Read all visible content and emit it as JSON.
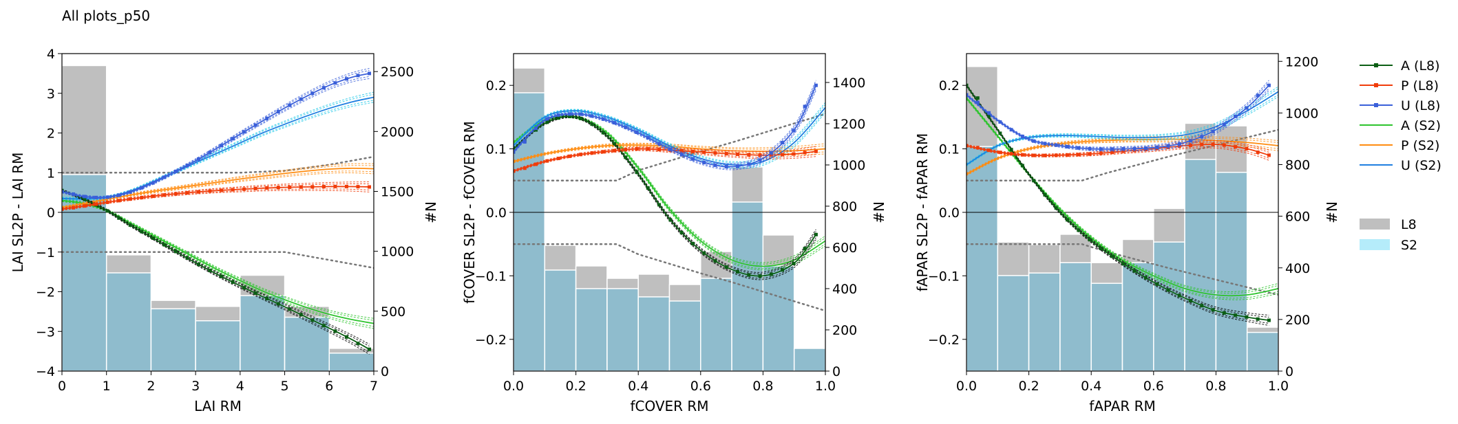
{
  "figure": {
    "suptitle": "All plots_p50"
  },
  "legend": {
    "placement": "right",
    "lines": [
      {
        "label": "A (L8)",
        "color": "#0b5e14",
        "marker": true
      },
      {
        "label": "P (L8)",
        "color": "#f03c0a",
        "marker": true
      },
      {
        "label": "U (L8)",
        "color": "#3a5fd9",
        "marker": true
      },
      {
        "label": "A (S2)",
        "color": "#2ec42e",
        "marker": false
      },
      {
        "label": "P (S2)",
        "color": "#ff8c10",
        "marker": false
      },
      {
        "label": "U (S2)",
        "color": "#1f7fe0",
        "marker": false
      }
    ],
    "patches": [
      {
        "label": "L8",
        "color": "#bfbfbf"
      },
      {
        "label": "S2",
        "color": "#b5ecfa"
      }
    ]
  },
  "colors": {
    "hist_l8": "#bfbfbf",
    "hist_s2": "#b5ecfa",
    "hist_overlap": "#8fbccd",
    "threshold": "#777777"
  },
  "chart_data": [
    {
      "type": "line",
      "xlabel": "LAI RM",
      "ylabel": "LAI SL2P - LAI RM",
      "y2label": "#N",
      "xlim": [
        0,
        7
      ],
      "ylim": [
        -4,
        4
      ],
      "y2lim": [
        0,
        2650
      ],
      "xticks": [
        "0",
        "1",
        "2",
        "3",
        "4",
        "5",
        "6",
        "7"
      ],
      "yticks": [
        "−4",
        "−3",
        "−2",
        "−1",
        "0",
        "1",
        "2",
        "3",
        "4"
      ],
      "y2ticks": [
        "0",
        "500",
        "1000",
        "1500",
        "2000",
        "2500"
      ],
      "hist_bins": [
        0,
        1,
        2,
        3,
        4,
        5,
        6,
        7
      ],
      "hist_l8": [
        2550,
        970,
        590,
        540,
        800,
        540,
        190
      ],
      "hist_s2": [
        1640,
        820,
        520,
        420,
        630,
        450,
        150
      ],
      "thresholds": {
        "x": [
          0,
          0.5,
          1,
          2,
          3,
          4,
          5,
          6,
          7
        ],
        "upper": [
          1.0,
          1.0,
          1.0,
          1.0,
          1.0,
          1.0,
          1.05,
          1.2,
          1.4
        ],
        "lower": [
          -1.0,
          -1.0,
          -1.0,
          -1.0,
          -1.0,
          -1.0,
          -1.0,
          -1.2,
          -1.4
        ]
      },
      "series": [
        {
          "name": "A (L8)",
          "x": [
            0,
            0.5,
            1,
            1.5,
            2,
            2.5,
            3,
            3.5,
            4,
            4.5,
            5,
            5.5,
            6,
            6.5,
            6.9
          ],
          "y": [
            0.55,
            0.33,
            0.05,
            -0.3,
            -0.62,
            -0.95,
            -1.27,
            -1.57,
            -1.85,
            -2.12,
            -2.38,
            -2.65,
            -2.92,
            -3.2,
            -3.45
          ]
        },
        {
          "name": "P (L8)",
          "x": [
            0,
            0.5,
            1,
            1.5,
            2,
            2.5,
            3,
            3.5,
            4,
            4.5,
            5,
            5.5,
            6,
            6.5,
            6.9
          ],
          "y": [
            0.08,
            0.16,
            0.25,
            0.33,
            0.4,
            0.46,
            0.51,
            0.55,
            0.58,
            0.61,
            0.63,
            0.64,
            0.65,
            0.65,
            0.64
          ]
        },
        {
          "name": "U (L8)",
          "x": [
            0,
            0.5,
            1,
            1.5,
            2,
            2.5,
            3,
            3.5,
            4,
            4.5,
            5,
            5.5,
            6,
            6.5,
            6.9
          ],
          "y": [
            0.52,
            0.4,
            0.38,
            0.5,
            0.72,
            1.0,
            1.3,
            1.63,
            1.97,
            2.3,
            2.63,
            2.93,
            3.2,
            3.4,
            3.5
          ]
        },
        {
          "name": "A (S2)",
          "x": [
            0,
            0.5,
            1,
            1.5,
            2,
            2.5,
            3,
            3.5,
            4,
            4.5,
            5,
            5.5,
            6,
            6.5,
            7
          ],
          "y": [
            0.3,
            0.22,
            0.05,
            -0.25,
            -0.55,
            -0.85,
            -1.15,
            -1.45,
            -1.72,
            -1.98,
            -2.2,
            -2.4,
            -2.57,
            -2.7,
            -2.8
          ]
        },
        {
          "name": "P (S2)",
          "x": [
            0,
            0.5,
            1,
            1.5,
            2,
            2.5,
            3,
            3.5,
            4,
            4.5,
            5,
            5.5,
            6,
            6.5,
            7
          ],
          "y": [
            0.12,
            0.22,
            0.33,
            0.43,
            0.52,
            0.6,
            0.68,
            0.76,
            0.84,
            0.91,
            0.98,
            1.04,
            1.09,
            1.11,
            1.1
          ]
        },
        {
          "name": "U (S2)",
          "x": [
            0,
            0.5,
            1,
            1.5,
            2,
            2.5,
            3,
            3.5,
            4,
            4.5,
            5,
            5.5,
            6,
            6.5,
            7
          ],
          "y": [
            0.35,
            0.34,
            0.38,
            0.52,
            0.75,
            1.0,
            1.25,
            1.5,
            1.75,
            2.0,
            2.22,
            2.43,
            2.62,
            2.78,
            2.9
          ]
        }
      ]
    },
    {
      "type": "line",
      "xlabel": "fCOVER RM",
      "ylabel": "fCOVER SL2P - fCOVER RM",
      "y2label": "#N",
      "xlim": [
        0,
        1
      ],
      "ylim": [
        -0.25,
        0.25
      ],
      "y2lim": [
        0,
        1540
      ],
      "xticks": [
        "0.0",
        "0.2",
        "0.4",
        "0.6",
        "0.8",
        "1.0"
      ],
      "yticks": [
        "−0.2",
        "−0.1",
        "0.0",
        "0.1",
        "0.2"
      ],
      "y2ticks": [
        "0",
        "200",
        "400",
        "600",
        "800",
        "1000",
        "1200",
        "1400"
      ],
      "hist_bins": [
        0,
        0.1,
        0.2,
        0.3,
        0.4,
        0.5,
        0.6,
        0.7,
        0.8,
        0.9,
        1.0
      ],
      "hist_l8": [
        1470,
        610,
        510,
        450,
        470,
        420,
        580,
        990,
        660,
        110
      ],
      "hist_s2": [
        1350,
        490,
        400,
        400,
        360,
        340,
        450,
        820,
        510,
        110
      ],
      "thresholds": {
        "x": [
          0,
          0.1,
          0.2,
          0.33,
          0.4,
          0.5,
          0.6,
          0.7,
          0.8,
          0.9,
          1.0
        ],
        "upper": [
          0.05,
          0.05,
          0.05,
          0.05,
          0.066,
          0.081,
          0.096,
          0.11,
          0.125,
          0.14,
          0.155
        ],
        "lower": [
          -0.05,
          -0.05,
          -0.05,
          -0.05,
          -0.066,
          -0.081,
          -0.096,
          -0.11,
          -0.125,
          -0.14,
          -0.155
        ]
      },
      "series": [
        {
          "name": "A (L8)",
          "x": [
            0,
            0.1,
            0.2,
            0.3,
            0.4,
            0.5,
            0.6,
            0.7,
            0.8,
            0.9,
            0.97
          ],
          "y": [
            0.1,
            0.14,
            0.15,
            0.12,
            0.06,
            -0.01,
            -0.06,
            -0.09,
            -0.1,
            -0.08,
            -0.035
          ]
        },
        {
          "name": "P (L8)",
          "x": [
            0,
            0.1,
            0.2,
            0.3,
            0.4,
            0.5,
            0.6,
            0.7,
            0.8,
            0.9,
            0.97
          ],
          "y": [
            0.065,
            0.08,
            0.09,
            0.096,
            0.1,
            0.098,
            0.095,
            0.092,
            0.09,
            0.092,
            0.096
          ]
        },
        {
          "name": "U (L8)",
          "x": [
            0,
            0.1,
            0.2,
            0.3,
            0.4,
            0.5,
            0.6,
            0.7,
            0.8,
            0.9,
            0.97
          ],
          "y": [
            0.095,
            0.145,
            0.155,
            0.145,
            0.125,
            0.1,
            0.08,
            0.072,
            0.085,
            0.13,
            0.2
          ]
        },
        {
          "name": "A (S2)",
          "x": [
            0,
            0.1,
            0.2,
            0.3,
            0.4,
            0.5,
            0.6,
            0.7,
            0.8,
            0.9,
            1.0
          ],
          "y": [
            0.11,
            0.145,
            0.15,
            0.125,
            0.07,
            0.005,
            -0.045,
            -0.075,
            -0.085,
            -0.075,
            -0.045
          ]
        },
        {
          "name": "P (S2)",
          "x": [
            0,
            0.1,
            0.2,
            0.3,
            0.4,
            0.5,
            0.6,
            0.7,
            0.8,
            0.9,
            1.0
          ],
          "y": [
            0.08,
            0.092,
            0.1,
            0.105,
            0.106,
            0.104,
            0.1,
            0.097,
            0.096,
            0.097,
            0.1
          ]
        },
        {
          "name": "U (S2)",
          "x": [
            0,
            0.1,
            0.2,
            0.3,
            0.4,
            0.5,
            0.6,
            0.7,
            0.8,
            0.9,
            1.0
          ],
          "y": [
            0.105,
            0.15,
            0.16,
            0.15,
            0.13,
            0.105,
            0.085,
            0.075,
            0.08,
            0.11,
            0.165
          ]
        }
      ]
    },
    {
      "type": "line",
      "xlabel": "fAPAR RM",
      "ylabel": "fAPAR SL2P - fAPAR RM",
      "y2label": "#N",
      "xlim": [
        0,
        1
      ],
      "ylim": [
        -0.25,
        0.25
      ],
      "y2lim": [
        0,
        1230
      ],
      "xticks": [
        "0.0",
        "0.2",
        "0.4",
        "0.6",
        "0.8",
        "1.0"
      ],
      "yticks": [
        "−0.2",
        "−0.1",
        "0.0",
        "0.1",
        "0.2"
      ],
      "y2ticks": [
        "0",
        "200",
        "400",
        "600",
        "800",
        "1000",
        "1200"
      ],
      "hist_bins": [
        0,
        0.1,
        0.2,
        0.3,
        0.4,
        0.5,
        0.6,
        0.7,
        0.8,
        0.9,
        1.0
      ],
      "hist_l8": [
        1180,
        500,
        490,
        530,
        420,
        510,
        630,
        960,
        950,
        170
      ],
      "hist_s2": [
        870,
        370,
        380,
        420,
        340,
        420,
        500,
        820,
        770,
        150
      ],
      "thresholds": {
        "x": [
          0,
          0.1,
          0.2,
          0.3,
          0.37,
          0.45,
          0.55,
          0.65,
          0.75,
          0.85,
          1.0
        ],
        "upper": [
          0.05,
          0.05,
          0.05,
          0.05,
          0.05,
          0.062,
          0.075,
          0.088,
          0.1,
          0.112,
          0.13
        ],
        "lower": [
          -0.05,
          -0.05,
          -0.05,
          -0.05,
          -0.05,
          -0.062,
          -0.075,
          -0.088,
          -0.1,
          -0.112,
          -0.13
        ]
      },
      "series": [
        {
          "name": "A (L8)",
          "x": [
            0,
            0.1,
            0.2,
            0.3,
            0.4,
            0.5,
            0.6,
            0.7,
            0.8,
            0.9,
            0.97
          ],
          "y": [
            0.2,
            0.13,
            0.06,
            0.0,
            -0.045,
            -0.08,
            -0.11,
            -0.135,
            -0.155,
            -0.165,
            -0.17
          ]
        },
        {
          "name": "P (L8)",
          "x": [
            0,
            0.1,
            0.2,
            0.3,
            0.4,
            0.5,
            0.6,
            0.7,
            0.8,
            0.9,
            0.97
          ],
          "y": [
            0.105,
            0.095,
            0.09,
            0.09,
            0.092,
            0.096,
            0.1,
            0.105,
            0.107,
            0.1,
            0.09
          ]
        },
        {
          "name": "U (L8)",
          "x": [
            0,
            0.1,
            0.2,
            0.3,
            0.4,
            0.5,
            0.6,
            0.7,
            0.8,
            0.9,
            0.97
          ],
          "y": [
            0.185,
            0.145,
            0.115,
            0.105,
            0.1,
            0.1,
            0.102,
            0.11,
            0.13,
            0.165,
            0.2
          ]
        },
        {
          "name": "A (S2)",
          "x": [
            0,
            0.1,
            0.2,
            0.3,
            0.4,
            0.5,
            0.6,
            0.7,
            0.8,
            0.9,
            1.0
          ],
          "y": [
            0.18,
            0.12,
            0.06,
            0.005,
            -0.04,
            -0.075,
            -0.1,
            -0.12,
            -0.13,
            -0.13,
            -0.12
          ]
        },
        {
          "name": "P (S2)",
          "x": [
            0,
            0.1,
            0.2,
            0.3,
            0.4,
            0.5,
            0.6,
            0.7,
            0.8,
            0.9,
            1.0
          ],
          "y": [
            0.06,
            0.085,
            0.1,
            0.108,
            0.112,
            0.114,
            0.115,
            0.115,
            0.113,
            0.11,
            0.105
          ]
        },
        {
          "name": "U (S2)",
          "x": [
            0,
            0.1,
            0.2,
            0.3,
            0.4,
            0.5,
            0.6,
            0.7,
            0.8,
            0.9,
            1.0
          ],
          "y": [
            0.075,
            0.105,
            0.118,
            0.121,
            0.12,
            0.118,
            0.118,
            0.122,
            0.135,
            0.16,
            0.19
          ]
        }
      ]
    }
  ]
}
